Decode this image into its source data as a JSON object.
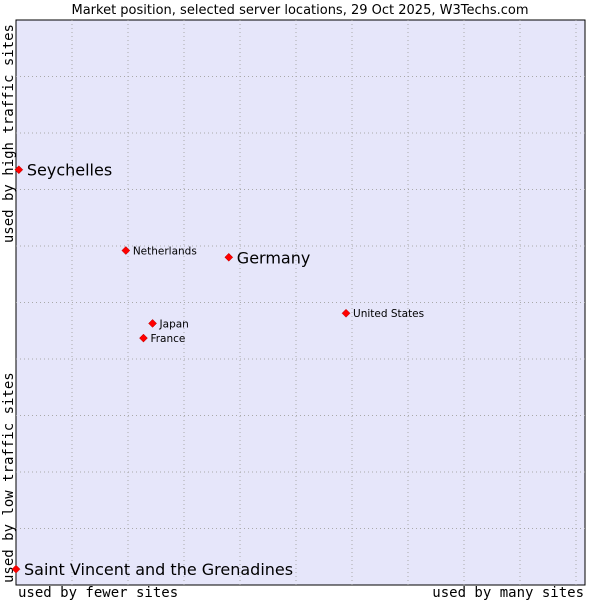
{
  "chart_data": {
    "type": "scatter",
    "title": "Market position, selected server locations, 29 Oct 2025, W3Techs.com",
    "xlabel_left": "used by fewer sites",
    "xlabel_right": "used by many sites",
    "ylabel_top": "used by high traffic sites",
    "ylabel_bottom": "used by low traffic sites",
    "xlim": [
      0,
      100
    ],
    "ylim": [
      0,
      100
    ],
    "grid": true,
    "point_color": "#ff0000",
    "plot_background": "#e6e6fa",
    "points": [
      {
        "name": "Seychelles",
        "x": 0.5,
        "y": 73.5,
        "emphasis": "large"
      },
      {
        "name": "Netherlands",
        "x": 19.3,
        "y": 59.2,
        "emphasis": "small"
      },
      {
        "name": "Germany",
        "x": 37.4,
        "y": 58.0,
        "emphasis": "large"
      },
      {
        "name": "United States",
        "x": 58.0,
        "y": 48.1,
        "emphasis": "small"
      },
      {
        "name": "Japan",
        "x": 24.0,
        "y": 46.3,
        "emphasis": "small"
      },
      {
        "name": "France",
        "x": 22.4,
        "y": 43.7,
        "emphasis": "small"
      },
      {
        "name": "Saint Vincent and the Grenadines",
        "x": 0.0,
        "y": 2.8,
        "emphasis": "large"
      }
    ]
  }
}
